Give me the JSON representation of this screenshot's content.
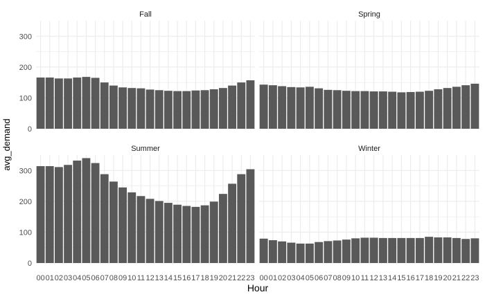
{
  "chart_data": {
    "type": "bar",
    "xlabel": "Hour",
    "ylabel": "avg_demand",
    "ylim": [
      0,
      350
    ],
    "yticks": [
      0,
      100,
      200,
      300
    ],
    "grid": true,
    "categories": [
      "00",
      "01",
      "02",
      "03",
      "04",
      "05",
      "06",
      "07",
      "08",
      "09",
      "10",
      "11",
      "12",
      "13",
      "14",
      "15",
      "16",
      "17",
      "18",
      "19",
      "20",
      "21",
      "22",
      "23"
    ],
    "bar_color": "#595959",
    "panel_background": "#ffffff",
    "grid_color": "#ebebeb",
    "facets": [
      {
        "label": "Fall",
        "values": [
          166,
          166,
          163,
          163,
          166,
          168,
          165,
          150,
          140,
          134,
          132,
          131,
          127,
          125,
          123,
          122,
          122,
          124,
          125,
          128,
          132,
          140,
          150,
          157
        ]
      },
      {
        "label": "Spring",
        "values": [
          143,
          141,
          138,
          135,
          134,
          136,
          131,
          126,
          125,
          123,
          122,
          122,
          121,
          121,
          120,
          118,
          119,
          120,
          123,
          128,
          132,
          136,
          141,
          146
        ]
      },
      {
        "label": "Summer",
        "values": [
          314,
          314,
          311,
          318,
          332,
          340,
          324,
          288,
          264,
          245,
          229,
          217,
          208,
          201,
          195,
          189,
          185,
          182,
          187,
          199,
          224,
          257,
          288,
          304
        ]
      },
      {
        "label": "Winter",
        "values": [
          79,
          74,
          70,
          66,
          63,
          63,
          68,
          71,
          73,
          76,
          80,
          82,
          82,
          81,
          81,
          81,
          81,
          81,
          85,
          83,
          83,
          81,
          78,
          80
        ]
      }
    ]
  }
}
